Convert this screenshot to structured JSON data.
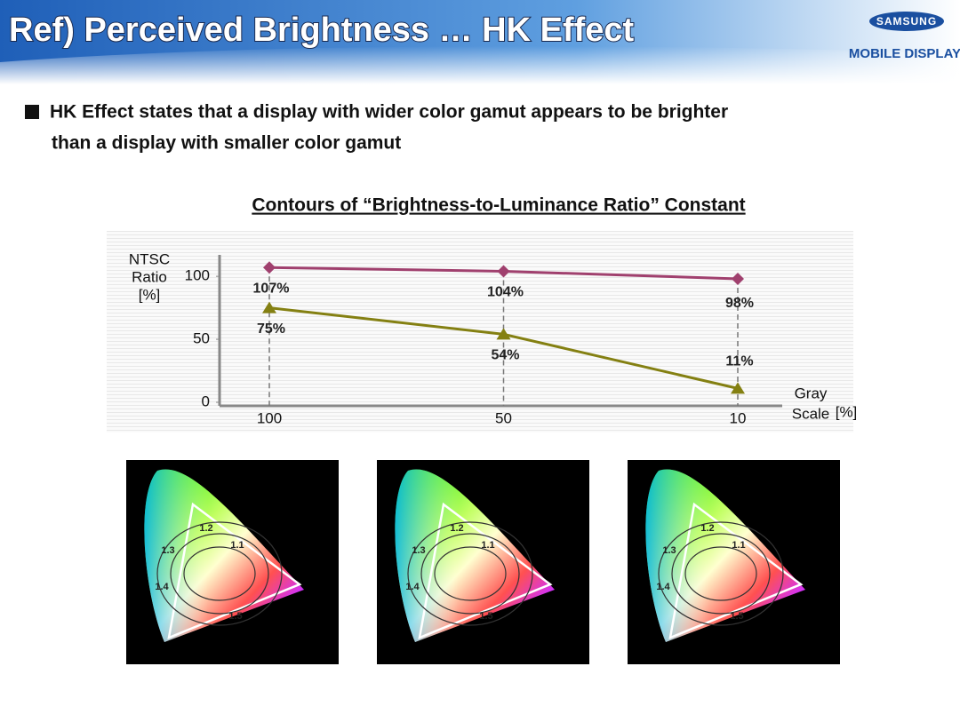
{
  "header": {
    "title": "Ref) Perceived Brightness … HK Effect",
    "logo": "SAMSUNG",
    "subtitle": "MOBILE DISPLAY"
  },
  "bullet": [
    "HK Effect states that a display with wider color gamut appears to be brighter",
    "than a display with smaller color gamut"
  ],
  "chart_data": {
    "type": "line",
    "title": "Contours of “Brightness-to-Luminance Ratio” Constant",
    "y_label": [
      "NTSC",
      "Ratio",
      "[%]"
    ],
    "x_label": [
      "Gray",
      "Scale",
      "[%]"
    ],
    "categories": [
      "100",
      "50",
      "10"
    ],
    "series": [
      {
        "color": "#a0406e",
        "marker": "diamond",
        "values": [
          107,
          104,
          98
        ],
        "value_labels": [
          "107%",
          "104%",
          "98%"
        ]
      },
      {
        "color": "#848012",
        "marker": "triangle",
        "values": [
          75,
          54,
          11
        ],
        "value_labels": [
          "75%",
          "54%",
          "11%"
        ]
      }
    ],
    "ylim": [
      0,
      117
    ],
    "yticks": [
      0,
      50,
      100
    ],
    "grid": false
  },
  "cie_diagrams": [
    {
      "labels": [
        "1.2",
        "1.1",
        "1.3",
        "1.4",
        "1.5"
      ]
    },
    {
      "labels": [
        "1.2",
        "1.1",
        "1.3",
        "1.4",
        "1.5"
      ]
    },
    {
      "labels": [
        "1.2",
        "1.1",
        "1.3",
        "1.4",
        "1.5"
      ]
    }
  ]
}
